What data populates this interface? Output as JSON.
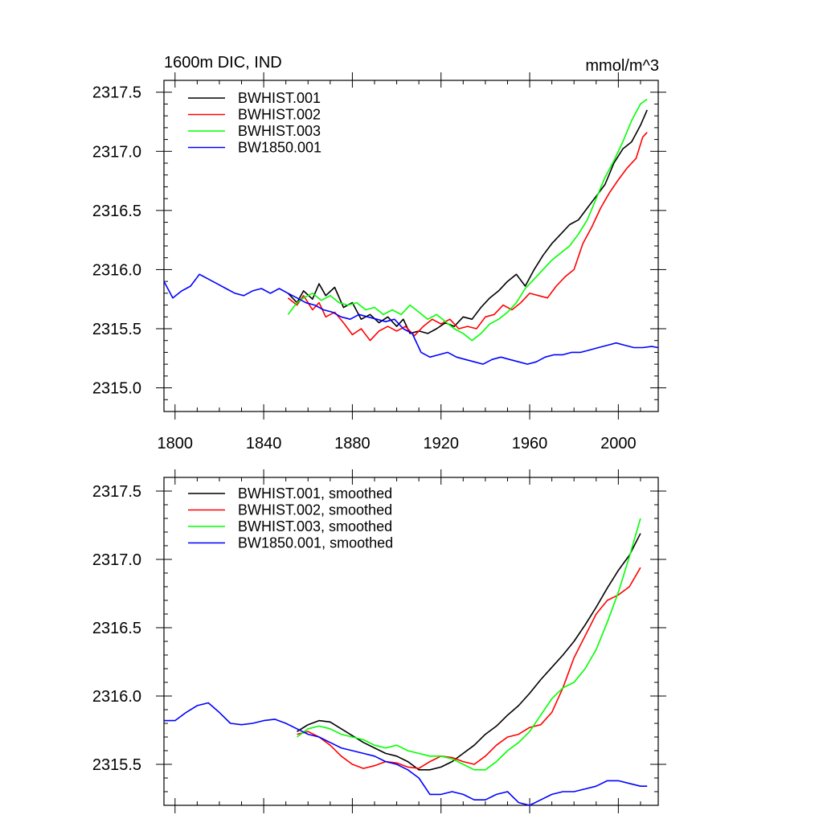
{
  "chart_data": [
    {
      "type": "line",
      "title_left": "1600m DIC, IND",
      "title_right": "mmol/m^3",
      "xlim": [
        1795,
        2018
      ],
      "ylim": [
        2314.8,
        2317.6
      ],
      "xticks": [
        1800,
        1840,
        1880,
        1920,
        1960,
        2000
      ],
      "xtick_labels": [
        "1800",
        "1840",
        "1880",
        "1920",
        "1960",
        "2000"
      ],
      "yticks": [
        2315.0,
        2315.5,
        2316.0,
        2316.5,
        2317.0,
        2317.5
      ],
      "ytick_labels": [
        "2315.0",
        "2315.5",
        "2316.0",
        "2316.5",
        "2317.0",
        "2317.5"
      ],
      "legend": [
        "BWHIST.001",
        "BWHIST.002",
        "BWHIST.003",
        "BW1850.001"
      ],
      "series": [
        {
          "name": "BWHIST.001",
          "color": "#000000",
          "x": [
            1851,
            1855,
            1858,
            1862,
            1865,
            1868,
            1872,
            1876,
            1880,
            1884,
            1888,
            1892,
            1896,
            1900,
            1903,
            1906,
            1910,
            1914,
            1918,
            1922,
            1926,
            1930,
            1934,
            1938,
            1942,
            1946,
            1950,
            1954,
            1958,
            1962,
            1966,
            1970,
            1974,
            1978,
            1982,
            1986,
            1990,
            1994,
            1998,
            2002,
            2006,
            2010,
            2013
          ],
          "values": [
            2315.8,
            2315.72,
            2315.82,
            2315.75,
            2315.88,
            2315.78,
            2315.85,
            2315.68,
            2315.72,
            2315.58,
            2315.62,
            2315.55,
            2315.6,
            2315.52,
            2315.58,
            2315.46,
            2315.48,
            2315.46,
            2315.5,
            2315.55,
            2315.52,
            2315.6,
            2315.58,
            2315.68,
            2315.76,
            2315.82,
            2315.9,
            2315.96,
            2315.86,
            2316.0,
            2316.12,
            2316.22,
            2316.3,
            2316.38,
            2316.42,
            2316.52,
            2316.62,
            2316.72,
            2316.9,
            2317.02,
            2317.08,
            2317.22,
            2317.35
          ]
        },
        {
          "name": "BWHIST.002",
          "color": "#ff0000",
          "x": [
            1851,
            1855,
            1858,
            1862,
            1865,
            1868,
            1872,
            1876,
            1880,
            1884,
            1888,
            1892,
            1896,
            1900,
            1904,
            1908,
            1912,
            1916,
            1920,
            1924,
            1928,
            1932,
            1936,
            1940,
            1944,
            1948,
            1952,
            1956,
            1960,
            1964,
            1968,
            1972,
            1976,
            1980,
            1984,
            1988,
            1992,
            1996,
            2000,
            2004,
            2008,
            2011,
            2013
          ],
          "values": [
            2315.76,
            2315.7,
            2315.78,
            2315.66,
            2315.72,
            2315.6,
            2315.64,
            2315.55,
            2315.45,
            2315.5,
            2315.4,
            2315.48,
            2315.52,
            2315.48,
            2315.52,
            2315.44,
            2315.52,
            2315.58,
            2315.54,
            2315.58,
            2315.5,
            2315.52,
            2315.5,
            2315.6,
            2315.62,
            2315.7,
            2315.66,
            2315.72,
            2315.8,
            2315.78,
            2315.76,
            2315.86,
            2315.94,
            2316.0,
            2316.22,
            2316.36,
            2316.52,
            2316.65,
            2316.76,
            2316.86,
            2316.94,
            2317.12,
            2317.16
          ]
        },
        {
          "name": "BWHIST.003",
          "color": "#00ff00",
          "x": [
            1851,
            1855,
            1858,
            1862,
            1866,
            1870,
            1874,
            1878,
            1882,
            1886,
            1890,
            1894,
            1898,
            1902,
            1906,
            1910,
            1914,
            1918,
            1922,
            1926,
            1930,
            1934,
            1938,
            1942,
            1946,
            1950,
            1954,
            1958,
            1962,
            1966,
            1970,
            1974,
            1978,
            1982,
            1986,
            1990,
            1994,
            1998,
            2002,
            2006,
            2010,
            2013
          ],
          "values": [
            2315.62,
            2315.72,
            2315.76,
            2315.8,
            2315.74,
            2315.78,
            2315.72,
            2315.7,
            2315.72,
            2315.66,
            2315.68,
            2315.62,
            2315.66,
            2315.62,
            2315.7,
            2315.64,
            2315.58,
            2315.62,
            2315.56,
            2315.5,
            2315.46,
            2315.4,
            2315.46,
            2315.54,
            2315.58,
            2315.64,
            2315.72,
            2315.84,
            2315.92,
            2316.0,
            2316.08,
            2316.14,
            2316.2,
            2316.3,
            2316.42,
            2316.6,
            2316.78,
            2316.92,
            2317.08,
            2317.26,
            2317.4,
            2317.44
          ]
        },
        {
          "name": "BW1850.001",
          "color": "#0000ff",
          "x": [
            1795,
            1799,
            1803,
            1807,
            1811,
            1815,
            1819,
            1823,
            1827,
            1831,
            1835,
            1839,
            1843,
            1847,
            1851,
            1855,
            1859,
            1863,
            1867,
            1871,
            1875,
            1879,
            1883,
            1887,
            1891,
            1895,
            1899,
            1903,
            1907,
            1911,
            1915,
            1919,
            1923,
            1927,
            1931,
            1935,
            1939,
            1943,
            1947,
            1951,
            1955,
            1959,
            1963,
            1967,
            1971,
            1975,
            1979,
            1983,
            1987,
            1991,
            1995,
            1999,
            2003,
            2007,
            2011,
            2015,
            2018
          ],
          "values": [
            2315.9,
            2315.76,
            2315.82,
            2315.86,
            2315.96,
            2315.92,
            2315.88,
            2315.84,
            2315.8,
            2315.78,
            2315.82,
            2315.84,
            2315.8,
            2315.84,
            2315.8,
            2315.76,
            2315.72,
            2315.7,
            2315.66,
            2315.64,
            2315.6,
            2315.58,
            2315.62,
            2315.6,
            2315.58,
            2315.56,
            2315.58,
            2315.5,
            2315.46,
            2315.3,
            2315.26,
            2315.28,
            2315.3,
            2315.26,
            2315.24,
            2315.22,
            2315.2,
            2315.24,
            2315.26,
            2315.24,
            2315.22,
            2315.2,
            2315.22,
            2315.26,
            2315.28,
            2315.28,
            2315.3,
            2315.3,
            2315.32,
            2315.34,
            2315.36,
            2315.38,
            2315.36,
            2315.34,
            2315.34,
            2315.35,
            2315.34
          ]
        }
      ]
    },
    {
      "type": "line",
      "xlim": [
        1795,
        2018
      ],
      "ylim": [
        2315.2,
        2317.6
      ],
      "xticks": [
        1800,
        1840,
        1880,
        1920,
        1960,
        2000
      ],
      "yticks": [
        2315.5,
        2316.0,
        2316.5,
        2317.0,
        2317.5
      ],
      "ytick_labels": [
        "2315.5",
        "2316.0",
        "2316.5",
        "2317.0",
        "2317.5"
      ],
      "legend": [
        "BWHIST.001, smoothed",
        "BWHIST.002, smoothed",
        "BWHIST.003, smoothed",
        "BW1850.001, smoothed"
      ],
      "series": [
        {
          "name": "BWHIST.001, smoothed",
          "color": "#000000",
          "x": [
            1855,
            1860,
            1865,
            1870,
            1875,
            1880,
            1885,
            1890,
            1895,
            1900,
            1905,
            1910,
            1915,
            1920,
            1925,
            1930,
            1935,
            1940,
            1945,
            1950,
            1955,
            1960,
            1965,
            1970,
            1975,
            1980,
            1985,
            1990,
            1995,
            2000,
            2005,
            2010
          ],
          "values": [
            2315.74,
            2315.79,
            2315.82,
            2315.81,
            2315.76,
            2315.71,
            2315.66,
            2315.62,
            2315.58,
            2315.56,
            2315.52,
            2315.46,
            2315.46,
            2315.48,
            2315.52,
            2315.58,
            2315.64,
            2315.72,
            2315.78,
            2315.86,
            2315.93,
            2316.02,
            2316.12,
            2316.21,
            2316.3,
            2316.4,
            2316.52,
            2316.65,
            2316.79,
            2316.92,
            2317.03,
            2317.19
          ]
        },
        {
          "name": "BWHIST.002, smoothed",
          "color": "#ff0000",
          "x": [
            1855,
            1860,
            1865,
            1870,
            1875,
            1880,
            1885,
            1890,
            1895,
            1900,
            1905,
            1910,
            1915,
            1920,
            1925,
            1930,
            1935,
            1940,
            1945,
            1950,
            1955,
            1960,
            1965,
            1970,
            1975,
            1980,
            1985,
            1990,
            1995,
            2000,
            2005,
            2010
          ],
          "values": [
            2315.72,
            2315.74,
            2315.7,
            2315.64,
            2315.56,
            2315.5,
            2315.47,
            2315.49,
            2315.52,
            2315.51,
            2315.48,
            2315.47,
            2315.52,
            2315.56,
            2315.55,
            2315.52,
            2315.5,
            2315.56,
            2315.64,
            2315.7,
            2315.72,
            2315.77,
            2315.79,
            2315.88,
            2316.06,
            2316.28,
            2316.44,
            2316.6,
            2316.7,
            2316.74,
            2316.8,
            2316.94
          ]
        },
        {
          "name": "BWHIST.003, smoothed",
          "color": "#00ff00",
          "x": [
            1855,
            1860,
            1865,
            1870,
            1875,
            1880,
            1885,
            1890,
            1895,
            1900,
            1905,
            1910,
            1915,
            1920,
            1925,
            1930,
            1935,
            1940,
            1945,
            1950,
            1955,
            1960,
            1965,
            1970,
            1975,
            1980,
            1985,
            1990,
            1995,
            2000,
            2005,
            2010
          ],
          "values": [
            2315.7,
            2315.76,
            2315.78,
            2315.76,
            2315.72,
            2315.7,
            2315.68,
            2315.64,
            2315.62,
            2315.64,
            2315.6,
            2315.58,
            2315.56,
            2315.56,
            2315.54,
            2315.5,
            2315.46,
            2315.46,
            2315.52,
            2315.6,
            2315.66,
            2315.74,
            2315.86,
            2315.98,
            2316.06,
            2316.1,
            2316.2,
            2316.34,
            2316.54,
            2316.76,
            2317.02,
            2317.3
          ]
        },
        {
          "name": "BW1850.001, smoothed",
          "color": "#0000ff",
          "x": [
            1795,
            1800,
            1805,
            1810,
            1815,
            1820,
            1825,
            1830,
            1835,
            1840,
            1845,
            1850,
            1855,
            1860,
            1865,
            1870,
            1875,
            1880,
            1885,
            1890,
            1895,
            1900,
            1905,
            1910,
            1915,
            1920,
            1925,
            1930,
            1935,
            1940,
            1945,
            1950,
            1955,
            1960,
            1965,
            1970,
            1975,
            1980,
            1985,
            1990,
            1995,
            2000,
            2005,
            2010,
            2013
          ],
          "values": [
            2315.82,
            2315.82,
            2315.88,
            2315.93,
            2315.95,
            2315.88,
            2315.8,
            2315.79,
            2315.8,
            2315.82,
            2315.83,
            2315.8,
            2315.76,
            2315.72,
            2315.7,
            2315.66,
            2315.62,
            2315.6,
            2315.58,
            2315.56,
            2315.52,
            2315.5,
            2315.46,
            2315.4,
            2315.28,
            2315.28,
            2315.3,
            2315.28,
            2315.24,
            2315.24,
            2315.28,
            2315.3,
            2315.22,
            2315.2,
            2315.24,
            2315.28,
            2315.3,
            2315.3,
            2315.32,
            2315.34,
            2315.38,
            2315.38,
            2315.36,
            2315.34,
            2315.34
          ]
        }
      ]
    }
  ]
}
